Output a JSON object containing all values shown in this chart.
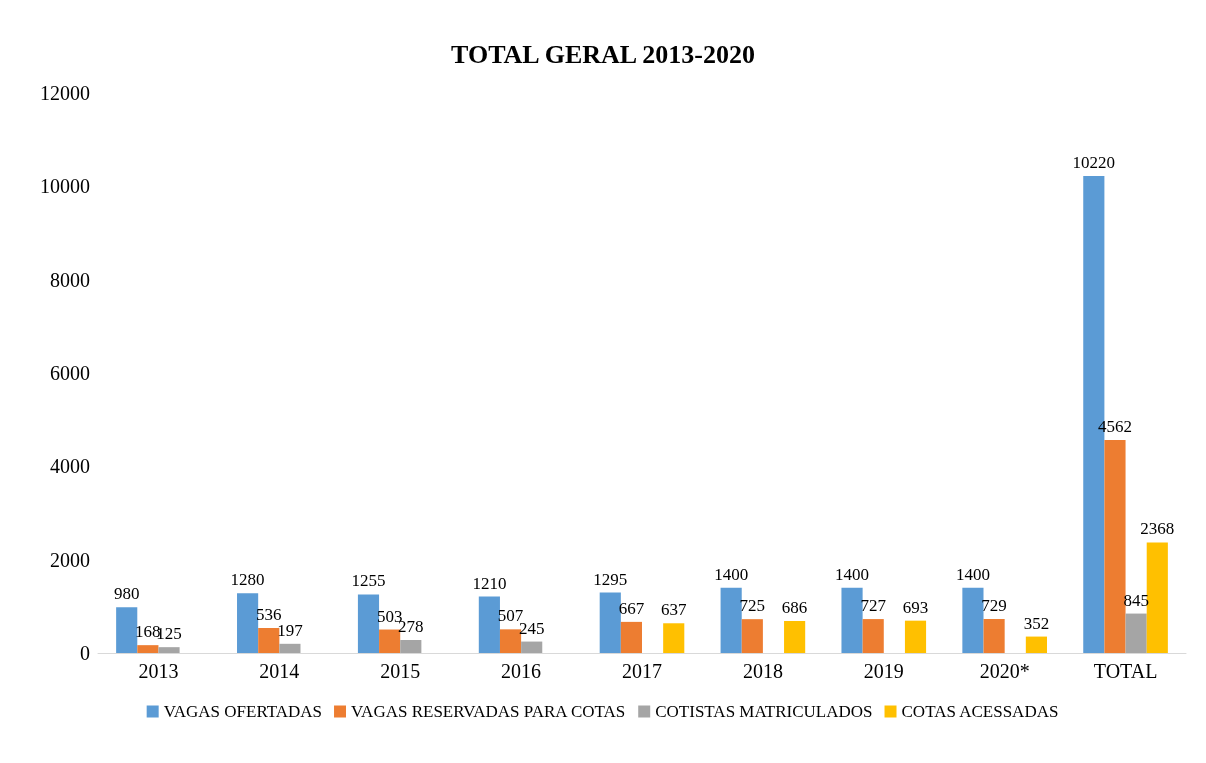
{
  "chart_data": {
    "type": "bar",
    "title": "TOTAL GERAL 2013-2020",
    "categories": [
      "2013",
      "2014",
      "2015",
      "2016",
      "2017",
      "2018",
      "2019",
      "2020*",
      "TOTAL"
    ],
    "series": [
      {
        "name": "VAGAS OFERTADAS",
        "color": "#5b9bd5",
        "values": [
          980,
          1280,
          1255,
          1210,
          1295,
          1400,
          1400,
          1400,
          10220
        ]
      },
      {
        "name": "VAGAS RESERVADAS PARA COTAS",
        "color": "#ed7d31",
        "values": [
          168,
          536,
          503,
          507,
          667,
          725,
          727,
          729,
          4562
        ]
      },
      {
        "name": "COTISTAS MATRICULADOS",
        "color": "#a5a5a5",
        "values": [
          125,
          197,
          278,
          245,
          null,
          null,
          null,
          null,
          845
        ]
      },
      {
        "name": "COTAS ACESSADAS",
        "color": "#ffc000",
        "values": [
          null,
          null,
          null,
          null,
          637,
          686,
          693,
          352,
          2368
        ]
      }
    ],
    "ylim": [
      0,
      12000
    ],
    "yticks": [
      0,
      2000,
      4000,
      6000,
      8000,
      10000,
      12000
    ],
    "grid": false,
    "legend": "bottom",
    "data_labels": true
  }
}
